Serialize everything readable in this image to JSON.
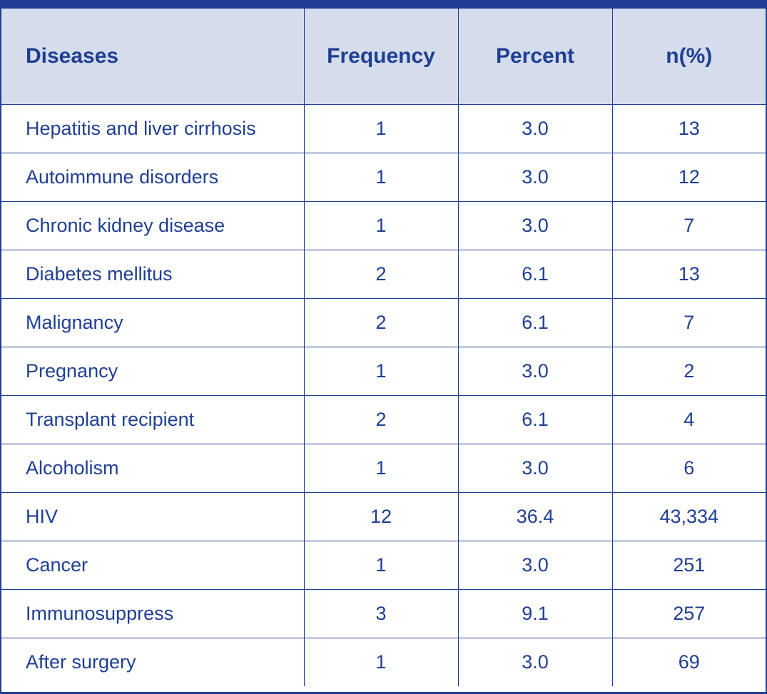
{
  "table": {
    "headers": [
      "Diseases",
      "Frequency",
      "Percent",
      "n(%)"
    ],
    "rows": [
      {
        "disease": "Hepatitis and liver cirrhosis",
        "frequency": "1",
        "percent": "3.0",
        "n": "13"
      },
      {
        "disease": "Autoimmune disorders",
        "frequency": "1",
        "percent": "3.0",
        "n": "12"
      },
      {
        "disease": "Chronic kidney disease",
        "frequency": "1",
        "percent": "3.0",
        "n": "7"
      },
      {
        "disease": "Diabetes mellitus",
        "frequency": "2",
        "percent": "6.1",
        "n": "13"
      },
      {
        "disease": "Malignancy",
        "frequency": "2",
        "percent": "6.1",
        "n": "7"
      },
      {
        "disease": "Pregnancy",
        "frequency": "1",
        "percent": "3.0",
        "n": "2"
      },
      {
        "disease": "Transplant recipient",
        "frequency": "2",
        "percent": "6.1",
        "n": "4"
      },
      {
        "disease": "Alcoholism",
        "frequency": "1",
        "percent": "3.0",
        "n": "6"
      },
      {
        "disease": "HIV",
        "frequency": "12",
        "percent": "36.4",
        "n": "43,334"
      },
      {
        "disease": "Cancer",
        "frequency": "1",
        "percent": "3.0",
        "n": "251"
      },
      {
        "disease": "Immunosuppress",
        "frequency": "3",
        "percent": "9.1",
        "n": "257"
      },
      {
        "disease": "After surgery",
        "frequency": "1",
        "percent": "3.0",
        "n": "69"
      }
    ]
  },
  "colors": {
    "border": "#1f3f94",
    "text": "#1f3f94",
    "header_background": "#d5dceb"
  }
}
